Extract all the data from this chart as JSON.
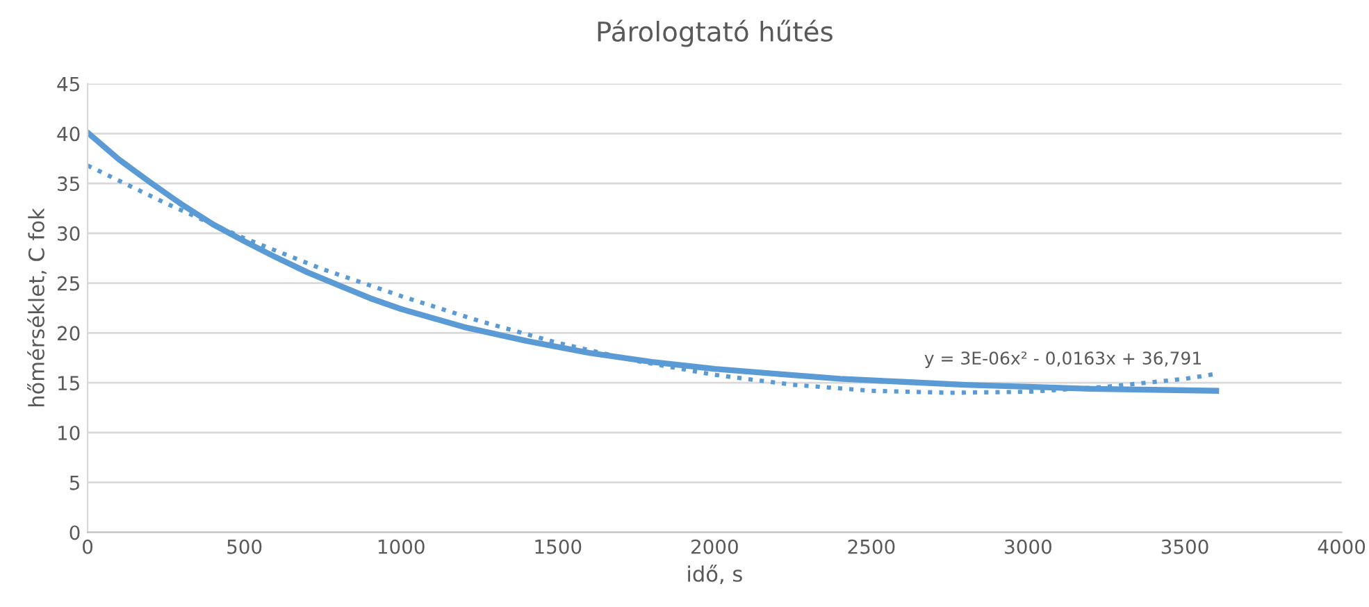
{
  "chart_data": {
    "type": "line",
    "title": "Párologtató hűtés",
    "xlabel": "idő, s",
    "ylabel": "hőmérséklet, C fok",
    "xlim": [
      0,
      4000
    ],
    "xticks": [
      0,
      500,
      1000,
      1500,
      2000,
      2500,
      3000,
      3500,
      4000
    ],
    "ylim": [
      0,
      45
    ],
    "yticks": [
      0,
      5,
      10,
      15,
      20,
      25,
      30,
      35,
      40,
      45
    ],
    "grid": "y",
    "legend": false,
    "marker": "none",
    "series": [
      {
        "color": "#5b9bd5",
        "line_style": "solid",
        "x": [
          0,
          100,
          200,
          300,
          400,
          500,
          600,
          700,
          800,
          900,
          1000,
          1200,
          1400,
          1600,
          1800,
          2000,
          2200,
          2400,
          2600,
          2800,
          3000,
          3200,
          3400,
          3600
        ],
        "values": [
          40.1,
          37.4,
          35.1,
          32.9,
          30.9,
          29.2,
          27.6,
          26.1,
          24.8,
          23.5,
          22.4,
          20.6,
          19.2,
          18.0,
          17.1,
          16.4,
          15.9,
          15.4,
          15.1,
          14.8,
          14.6,
          14.4,
          14.3,
          14.2
        ]
      },
      {
        "color": "#5b9bd5",
        "line_style": "dotted",
        "x": [
          0,
          250,
          500,
          750,
          1000,
          1250,
          1500,
          1750,
          2000,
          2250,
          2500,
          2750,
          3000,
          3250,
          3500,
          3600
        ],
        "values": [
          36.8,
          33.0,
          29.5,
          26.4,
          23.7,
          21.2,
          19.0,
          17.2,
          15.8,
          14.8,
          14.2,
          14.0,
          14.1,
          14.6,
          15.4,
          15.9
        ]
      }
    ],
    "annotations": [
      "y = 3E-06x² - 0,0163x + 36,791"
    ]
  }
}
